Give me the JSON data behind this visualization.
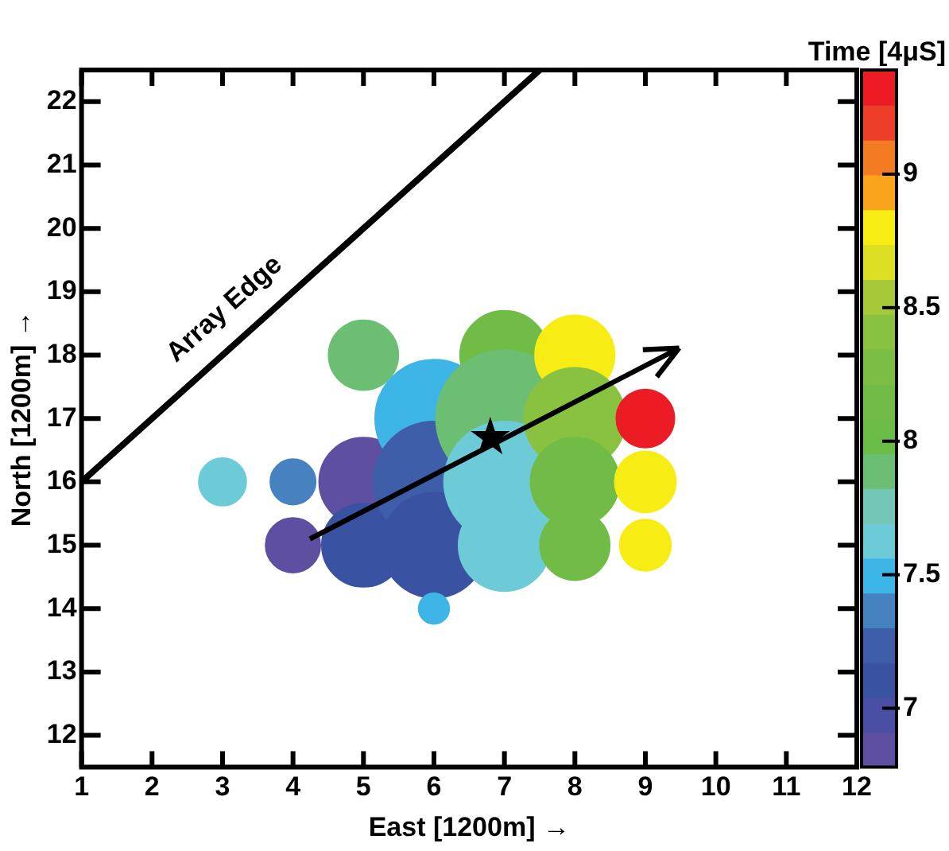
{
  "chart_data": {
    "type": "bubble",
    "xlabel": "East [1200m] →",
    "ylabel": "North [1200m] →",
    "clabel": "Time [4μS]",
    "xlim": [
      1,
      12
    ],
    "xticks": [
      1,
      2,
      3,
      4,
      5,
      6,
      7,
      8,
      9,
      10,
      11,
      12
    ],
    "ylim": [
      11.5,
      22.5
    ],
    "yticks": [
      12,
      13,
      14,
      15,
      16,
      17,
      18,
      19,
      20,
      21,
      22
    ],
    "clim": [
      6.78,
      9.39
    ],
    "cticks": [
      7,
      7.5,
      8,
      8.5,
      9
    ],
    "grid": false,
    "legend": false,
    "series": [
      {
        "type": "bubble",
        "x": [
          3,
          4,
          4,
          5,
          5,
          5,
          6,
          6,
          6,
          6,
          7,
          7,
          7,
          7,
          8,
          8,
          8,
          8,
          9,
          9,
          9
        ],
        "values": [
          16,
          16,
          15,
          18,
          16,
          15,
          17,
          16,
          15,
          14,
          18,
          17,
          16,
          15,
          18,
          17,
          16,
          15,
          17,
          16,
          15
        ],
        "sizes": [
          0.12,
          0.11,
          0.16,
          0.26,
          0.42,
          0.37,
          0.74,
          0.78,
          0.59,
          0.05,
          0.42,
          1,
          0.78,
          0.45,
          0.34,
          0.55,
          0.42,
          0.26,
          0.18,
          0.2,
          0.14
        ],
        "cvalues": [
          7.6,
          7.4,
          6.85,
          7.9,
          6.85,
          7.1,
          7.5,
          7.2,
          7.1,
          7.5,
          8.1,
          7.9,
          7.6,
          7.6,
          8.8,
          8.4,
          8.1,
          8.1,
          9.3,
          8.8,
          8.8
        ],
        "colors": [
          "#6dcbd8",
          "#4682c0",
          "#5f4fa0",
          "#6cbf72",
          "#5f4fa0",
          "#3a52a2",
          "#3db5e6",
          "#3f5eaa",
          "#3a52a2",
          "#3db5e6",
          "#70bc46",
          "#6cbf72",
          "#6dcbd8",
          "#6dcbd8",
          "#f7ec13",
          "#88c240",
          "#70bc46",
          "#70bc46",
          "#ec1c24",
          "#f7ec13",
          "#f7ec13"
        ]
      },
      {
        "type": "line",
        "name": "Array Edge",
        "color": "#000000",
        "x": [
          1,
          7.5
        ],
        "values": [
          16,
          22.5
        ]
      },
      {
        "type": "scatter",
        "marker": "star",
        "color": "#000000",
        "x": [
          6.8
        ],
        "values": [
          16.7
        ]
      }
    ]
  }
}
